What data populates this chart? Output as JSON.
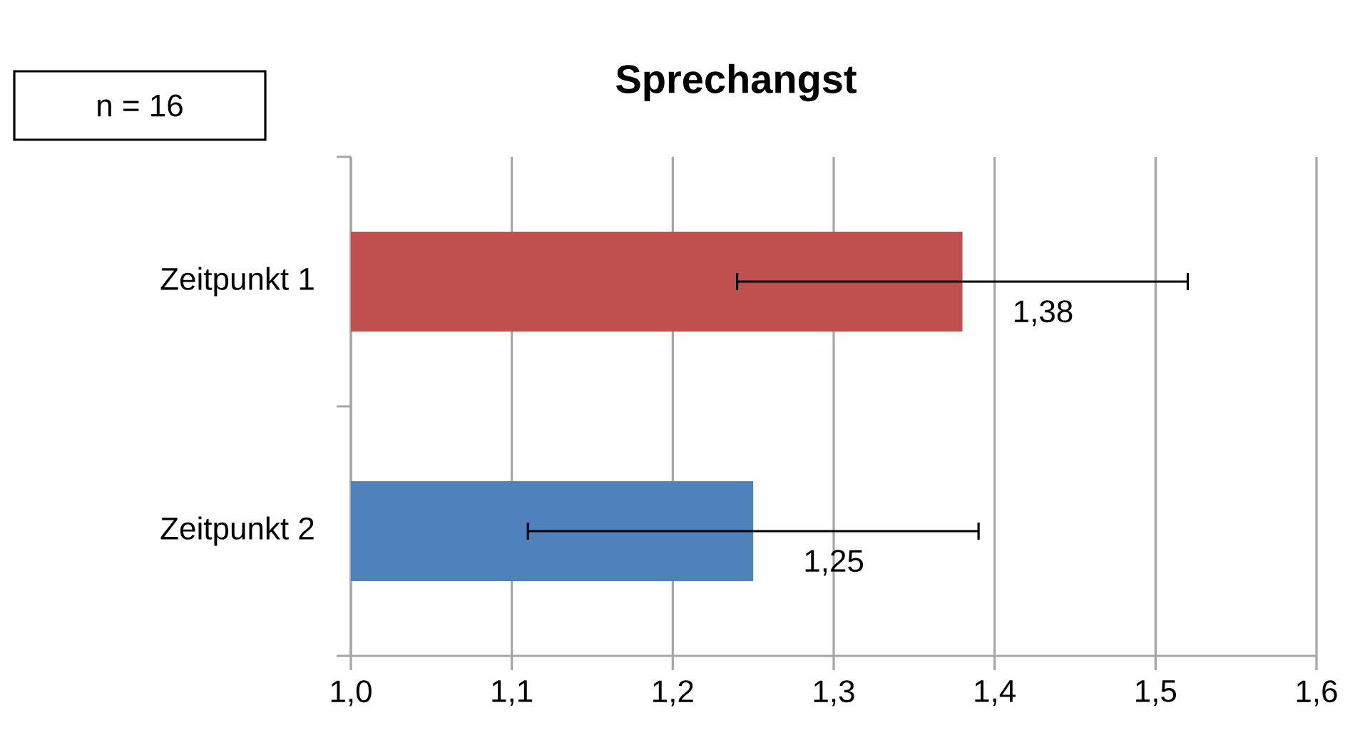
{
  "chart_data": {
    "type": "bar",
    "orientation": "horizontal",
    "title": "Sprechangst",
    "categories": [
      "Zeitpunkt 1",
      "Zeitpunkt 2"
    ],
    "values": [
      1.38,
      1.25
    ],
    "colors": [
      "#c0504d",
      "#4f81bd"
    ],
    "errors": [
      0.14,
      0.14
    ],
    "value_labels": [
      "1,38",
      "1,25"
    ],
    "xlim": [
      1.0,
      1.6
    ],
    "xticks": [
      {
        "value": 1.0,
        "label": "1,0"
      },
      {
        "value": 1.1,
        "label": "1,1"
      },
      {
        "value": 1.2,
        "label": "1,2"
      },
      {
        "value": 1.3,
        "label": "1,3"
      },
      {
        "value": 1.4,
        "label": "1,4"
      },
      {
        "value": 1.5,
        "label": "1,5"
      },
      {
        "value": 1.6,
        "label": "1,6"
      }
    ],
    "grid": "x",
    "annotations": [
      "n = 16"
    ]
  }
}
